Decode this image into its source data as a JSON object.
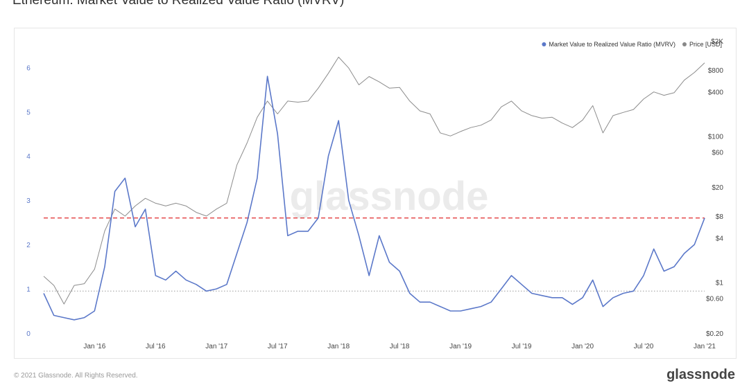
{
  "page": {
    "title": "Ethereum: Market Value to Realized Value Ratio (MVRV)",
    "watermark": "glassnode",
    "copyright": "© 2021 Glassnode. All Rights Reserved.",
    "brand": "glassnode"
  },
  "chart_data": {
    "type": "line",
    "grid": false,
    "legend_placement": "top-right",
    "legend": [
      {
        "label": "Market Value to Realized Value Ratio (MVRV)",
        "color": "#5b78c9"
      },
      {
        "label": "Price [USD]",
        "color": "#888888"
      }
    ],
    "colors": {
      "mvrv": "#5b78c9",
      "price": "#8c8c8c",
      "threshold": "#e0292b",
      "baseline": "#999999"
    },
    "x_ticks": [
      "Jan '16",
      "Jul '16",
      "Jan '17",
      "Jul '17",
      "Jan '18",
      "Jul '18",
      "Jan '19",
      "Jul '19",
      "Jan '20",
      "Jul '20",
      "Jan '21"
    ],
    "xlim": [
      "2015-08",
      "2021-01"
    ],
    "y_left": {
      "ticks": [
        "0",
        "1",
        "2",
        "3",
        "4",
        "5",
        "6"
      ],
      "range": [
        0,
        6.6
      ]
    },
    "y_right": {
      "scale": "log",
      "ticks": [
        "$0.20",
        "$0.60",
        "$1",
        "$4",
        "$8",
        "$20",
        "$60",
        "$100",
        "$400",
        "$800",
        "$2K"
      ],
      "range": [
        0.2,
        2000
      ]
    },
    "reference_lines": [
      {
        "axis": "left",
        "value": 2.6,
        "style": "dashed",
        "color": "#e0292b"
      },
      {
        "axis": "left",
        "value": 0.95,
        "style": "dotted",
        "color": "#999999"
      }
    ],
    "series": [
      {
        "name": "Market Value to Realized Value Ratio (MVRV)",
        "axis": "left",
        "points": [
          [
            "2015-08",
            0.9
          ],
          [
            "2015-09",
            0.4
          ],
          [
            "2015-10",
            0.35
          ],
          [
            "2015-11",
            0.3
          ],
          [
            "2015-12",
            0.35
          ],
          [
            "2016-01",
            0.5
          ],
          [
            "2016-02",
            1.5
          ],
          [
            "2016-03",
            3.2
          ],
          [
            "2016-04",
            3.5
          ],
          [
            "2016-05",
            2.4
          ],
          [
            "2016-06",
            2.8
          ],
          [
            "2016-07",
            1.3
          ],
          [
            "2016-08",
            1.2
          ],
          [
            "2016-09",
            1.4
          ],
          [
            "2016-10",
            1.2
          ],
          [
            "2016-11",
            1.1
          ],
          [
            "2016-12",
            0.95
          ],
          [
            "2017-01",
            1.0
          ],
          [
            "2017-02",
            1.1
          ],
          [
            "2017-03",
            1.8
          ],
          [
            "2017-04",
            2.5
          ],
          [
            "2017-05",
            3.5
          ],
          [
            "2017-06",
            5.8
          ],
          [
            "2017-07",
            4.5
          ],
          [
            "2017-08",
            2.2
          ],
          [
            "2017-09",
            2.3
          ],
          [
            "2017-10",
            2.3
          ],
          [
            "2017-11",
            2.6
          ],
          [
            "2017-12",
            4.0
          ],
          [
            "2018-01",
            4.8
          ],
          [
            "2018-02",
            3.0
          ],
          [
            "2018-03",
            2.2
          ],
          [
            "2018-04",
            1.3
          ],
          [
            "2018-05",
            2.2
          ],
          [
            "2018-06",
            1.6
          ],
          [
            "2018-07",
            1.4
          ],
          [
            "2018-08",
            0.9
          ],
          [
            "2018-09",
            0.7
          ],
          [
            "2018-10",
            0.7
          ],
          [
            "2018-11",
            0.6
          ],
          [
            "2018-12",
            0.5
          ],
          [
            "2019-01",
            0.5
          ],
          [
            "2019-02",
            0.55
          ],
          [
            "2019-03",
            0.6
          ],
          [
            "2019-04",
            0.7
          ],
          [
            "2019-05",
            1.0
          ],
          [
            "2019-06",
            1.3
          ],
          [
            "2019-07",
            1.1
          ],
          [
            "2019-08",
            0.9
          ],
          [
            "2019-09",
            0.85
          ],
          [
            "2019-10",
            0.8
          ],
          [
            "2019-11",
            0.8
          ],
          [
            "2019-12",
            0.65
          ],
          [
            "2020-01",
            0.8
          ],
          [
            "2020-02",
            1.2
          ],
          [
            "2020-03",
            0.6
          ],
          [
            "2020-04",
            0.8
          ],
          [
            "2020-05",
            0.9
          ],
          [
            "2020-06",
            0.95
          ],
          [
            "2020-07",
            1.3
          ],
          [
            "2020-08",
            1.9
          ],
          [
            "2020-09",
            1.4
          ],
          [
            "2020-10",
            1.5
          ],
          [
            "2020-11",
            1.8
          ],
          [
            "2020-12",
            2.0
          ],
          [
            "2021-01",
            2.6
          ]
        ]
      },
      {
        "name": "Price [USD]",
        "axis": "right",
        "points": [
          [
            "2015-08",
            1.2
          ],
          [
            "2015-09",
            0.9
          ],
          [
            "2015-10",
            0.5
          ],
          [
            "2015-11",
            0.9
          ],
          [
            "2015-12",
            0.95
          ],
          [
            "2016-01",
            1.5
          ],
          [
            "2016-02",
            5
          ],
          [
            "2016-03",
            10
          ],
          [
            "2016-04",
            8
          ],
          [
            "2016-05",
            11
          ],
          [
            "2016-06",
            14
          ],
          [
            "2016-07",
            12
          ],
          [
            "2016-08",
            11
          ],
          [
            "2016-09",
            12
          ],
          [
            "2016-10",
            11
          ],
          [
            "2016-11",
            9
          ],
          [
            "2016-12",
            8
          ],
          [
            "2017-01",
            10
          ],
          [
            "2017-02",
            12
          ],
          [
            "2017-03",
            40
          ],
          [
            "2017-04",
            80
          ],
          [
            "2017-05",
            180
          ],
          [
            "2017-06",
            300
          ],
          [
            "2017-07",
            200
          ],
          [
            "2017-08",
            300
          ],
          [
            "2017-09",
            290
          ],
          [
            "2017-10",
            300
          ],
          [
            "2017-11",
            450
          ],
          [
            "2017-12",
            720
          ],
          [
            "2018-01",
            1200
          ],
          [
            "2018-02",
            850
          ],
          [
            "2018-03",
            500
          ],
          [
            "2018-04",
            650
          ],
          [
            "2018-05",
            550
          ],
          [
            "2018-06",
            450
          ],
          [
            "2018-07",
            460
          ],
          [
            "2018-08",
            300
          ],
          [
            "2018-09",
            220
          ],
          [
            "2018-10",
            200
          ],
          [
            "2018-11",
            110
          ],
          [
            "2018-12",
            100
          ],
          [
            "2019-01",
            115
          ],
          [
            "2019-02",
            130
          ],
          [
            "2019-03",
            140
          ],
          [
            "2019-04",
            165
          ],
          [
            "2019-05",
            250
          ],
          [
            "2019-06",
            300
          ],
          [
            "2019-07",
            220
          ],
          [
            "2019-08",
            190
          ],
          [
            "2019-09",
            175
          ],
          [
            "2019-10",
            180
          ],
          [
            "2019-11",
            150
          ],
          [
            "2019-12",
            130
          ],
          [
            "2020-01",
            165
          ],
          [
            "2020-02",
            260
          ],
          [
            "2020-03",
            110
          ],
          [
            "2020-04",
            190
          ],
          [
            "2020-05",
            210
          ],
          [
            "2020-06",
            230
          ],
          [
            "2020-07",
            320
          ],
          [
            "2020-08",
            400
          ],
          [
            "2020-09",
            360
          ],
          [
            "2020-10",
            390
          ],
          [
            "2020-11",
            580
          ],
          [
            "2020-12",
            740
          ],
          [
            "2021-01",
            1000
          ]
        ]
      }
    ]
  }
}
